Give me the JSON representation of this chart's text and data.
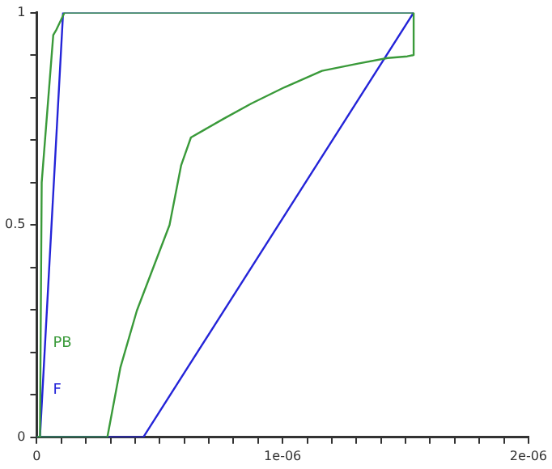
{
  "chart_data": {
    "type": "line",
    "xlim": [
      0,
      2e-06
    ],
    "ylim": [
      0,
      1
    ],
    "xticks": [
      0,
      {
        "value": 1e-07,
        "label": null
      },
      {
        "value": 2e-07,
        "label": null
      },
      {
        "value": 3e-07,
        "label": null
      },
      {
        "value": 4e-07,
        "label": null
      },
      {
        "value": 5e-07,
        "label": null
      },
      {
        "value": 6e-07,
        "label": null
      },
      {
        "value": 7e-07,
        "label": null
      },
      {
        "value": 8e-07,
        "label": null
      },
      {
        "value": 9e-07,
        "label": null
      },
      {
        "value": 1e-06,
        "label": "1e-06"
      },
      {
        "value": 1.1e-06,
        "label": null
      },
      {
        "value": 1.2e-06,
        "label": null
      },
      {
        "value": 1.3e-06,
        "label": null
      },
      {
        "value": 1.4e-06,
        "label": null
      },
      {
        "value": 1.5e-06,
        "label": null
      },
      {
        "value": 1.6e-06,
        "label": null
      },
      {
        "value": 1.7e-06,
        "label": null
      },
      {
        "value": 1.8e-06,
        "label": null
      },
      {
        "value": 1.9e-06,
        "label": null
      },
      {
        "value": 2e-06,
        "label": "2e-06"
      }
    ],
    "yticks": [
      0,
      {
        "value": 0.1,
        "label": null
      },
      {
        "value": 0.2,
        "label": null
      },
      {
        "value": 0.3,
        "label": null
      },
      {
        "value": 0.4,
        "label": null
      },
      0.5,
      {
        "value": 0.6,
        "label": null
      },
      {
        "value": 0.7,
        "label": null
      },
      {
        "value": 0.8,
        "label": null
      },
      {
        "value": 0.9,
        "label": null
      },
      1
    ],
    "grid": false,
    "line_style": "solid",
    "marker": "none",
    "series": [
      {
        "name": "PB",
        "color": "#3a9a3a",
        "x": [
          0,
          1.3e-08,
          2e-08,
          6.7e-08,
          8e-08,
          1.13e-07,
          1.533e-06
        ],
        "values": [
          0,
          0,
          0.6,
          0.947,
          0.96,
          1,
          1
        ]
      },
      {
        "color": "#3a9a3a",
        "x": [
          0,
          2.87e-07,
          3.4e-07,
          4.07e-07,
          5.4e-07,
          5.87e-07,
          6.27e-07,
          7.6e-07,
          8.73e-07,
          1.007e-06,
          1.16e-06,
          1.307e-06,
          1.427e-06,
          1.507e-06,
          1.533e-06,
          1.533e-06
        ],
        "values": [
          0,
          0,
          0.164,
          0.298,
          0.5,
          0.64,
          0.706,
          0.75,
          0.786,
          0.824,
          0.863,
          0.88,
          0.893,
          0.897,
          0.9,
          1
        ]
      },
      {
        "name": "F",
        "color": "#2424d8",
        "x": [
          0,
          1.3e-08,
          1.07e-07,
          1.533e-06
        ],
        "values": [
          0,
          0,
          1,
          1
        ]
      },
      {
        "color": "#2424d8",
        "x": [
          0,
          4.33e-07,
          1.533e-06
        ],
        "values": [
          0,
          0,
          1
        ]
      }
    ]
  }
}
